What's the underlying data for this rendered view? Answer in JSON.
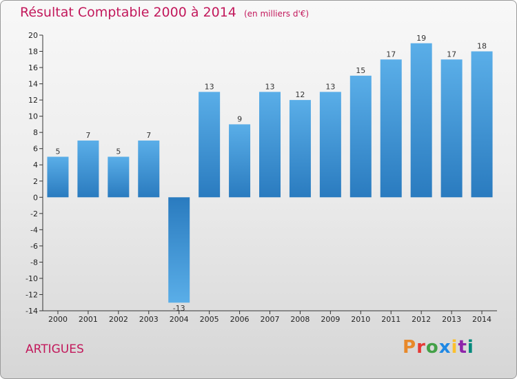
{
  "chart_data": {
    "type": "bar",
    "title": "Résultat Comptable 2000 à 2014",
    "subtitle": "(en milliers d'€)",
    "categories": [
      "2000",
      "2001",
      "2002",
      "2003",
      "2004",
      "2005",
      "2006",
      "2007",
      "2008",
      "2009",
      "2010",
      "2011",
      "2012",
      "2013",
      "2014"
    ],
    "values": [
      5,
      7,
      5,
      7,
      -13,
      13,
      9,
      13,
      12,
      13,
      15,
      17,
      19,
      17,
      18
    ],
    "value_labels": [
      "5",
      "7",
      "5",
      "7",
      "-13",
      "13",
      "9",
      "13",
      "12",
      "13",
      "15",
      "17",
      "19",
      "17",
      "18"
    ],
    "ylim": [
      -14,
      20
    ],
    "yticks": [
      20,
      18,
      16,
      14,
      12,
      10,
      8,
      6,
      4,
      2,
      0,
      -2,
      -4,
      -6,
      -8,
      -10,
      -12,
      -14
    ],
    "xlabel": "",
    "ylabel": "",
    "grid": false,
    "bar_color_light": "#5aaee8",
    "bar_color_dark": "#2a7bbf"
  },
  "footer": {
    "commune": "ARTIGUES",
    "logo_text": "Proxiti",
    "logo_colors": [
      "#e8892a",
      "#e53935",
      "#43a047",
      "#1e88e5",
      "#fbc02d",
      "#8e24aa",
      "#00897b"
    ]
  },
  "colors": {
    "title": "#c2185b",
    "axis": "#333333"
  }
}
